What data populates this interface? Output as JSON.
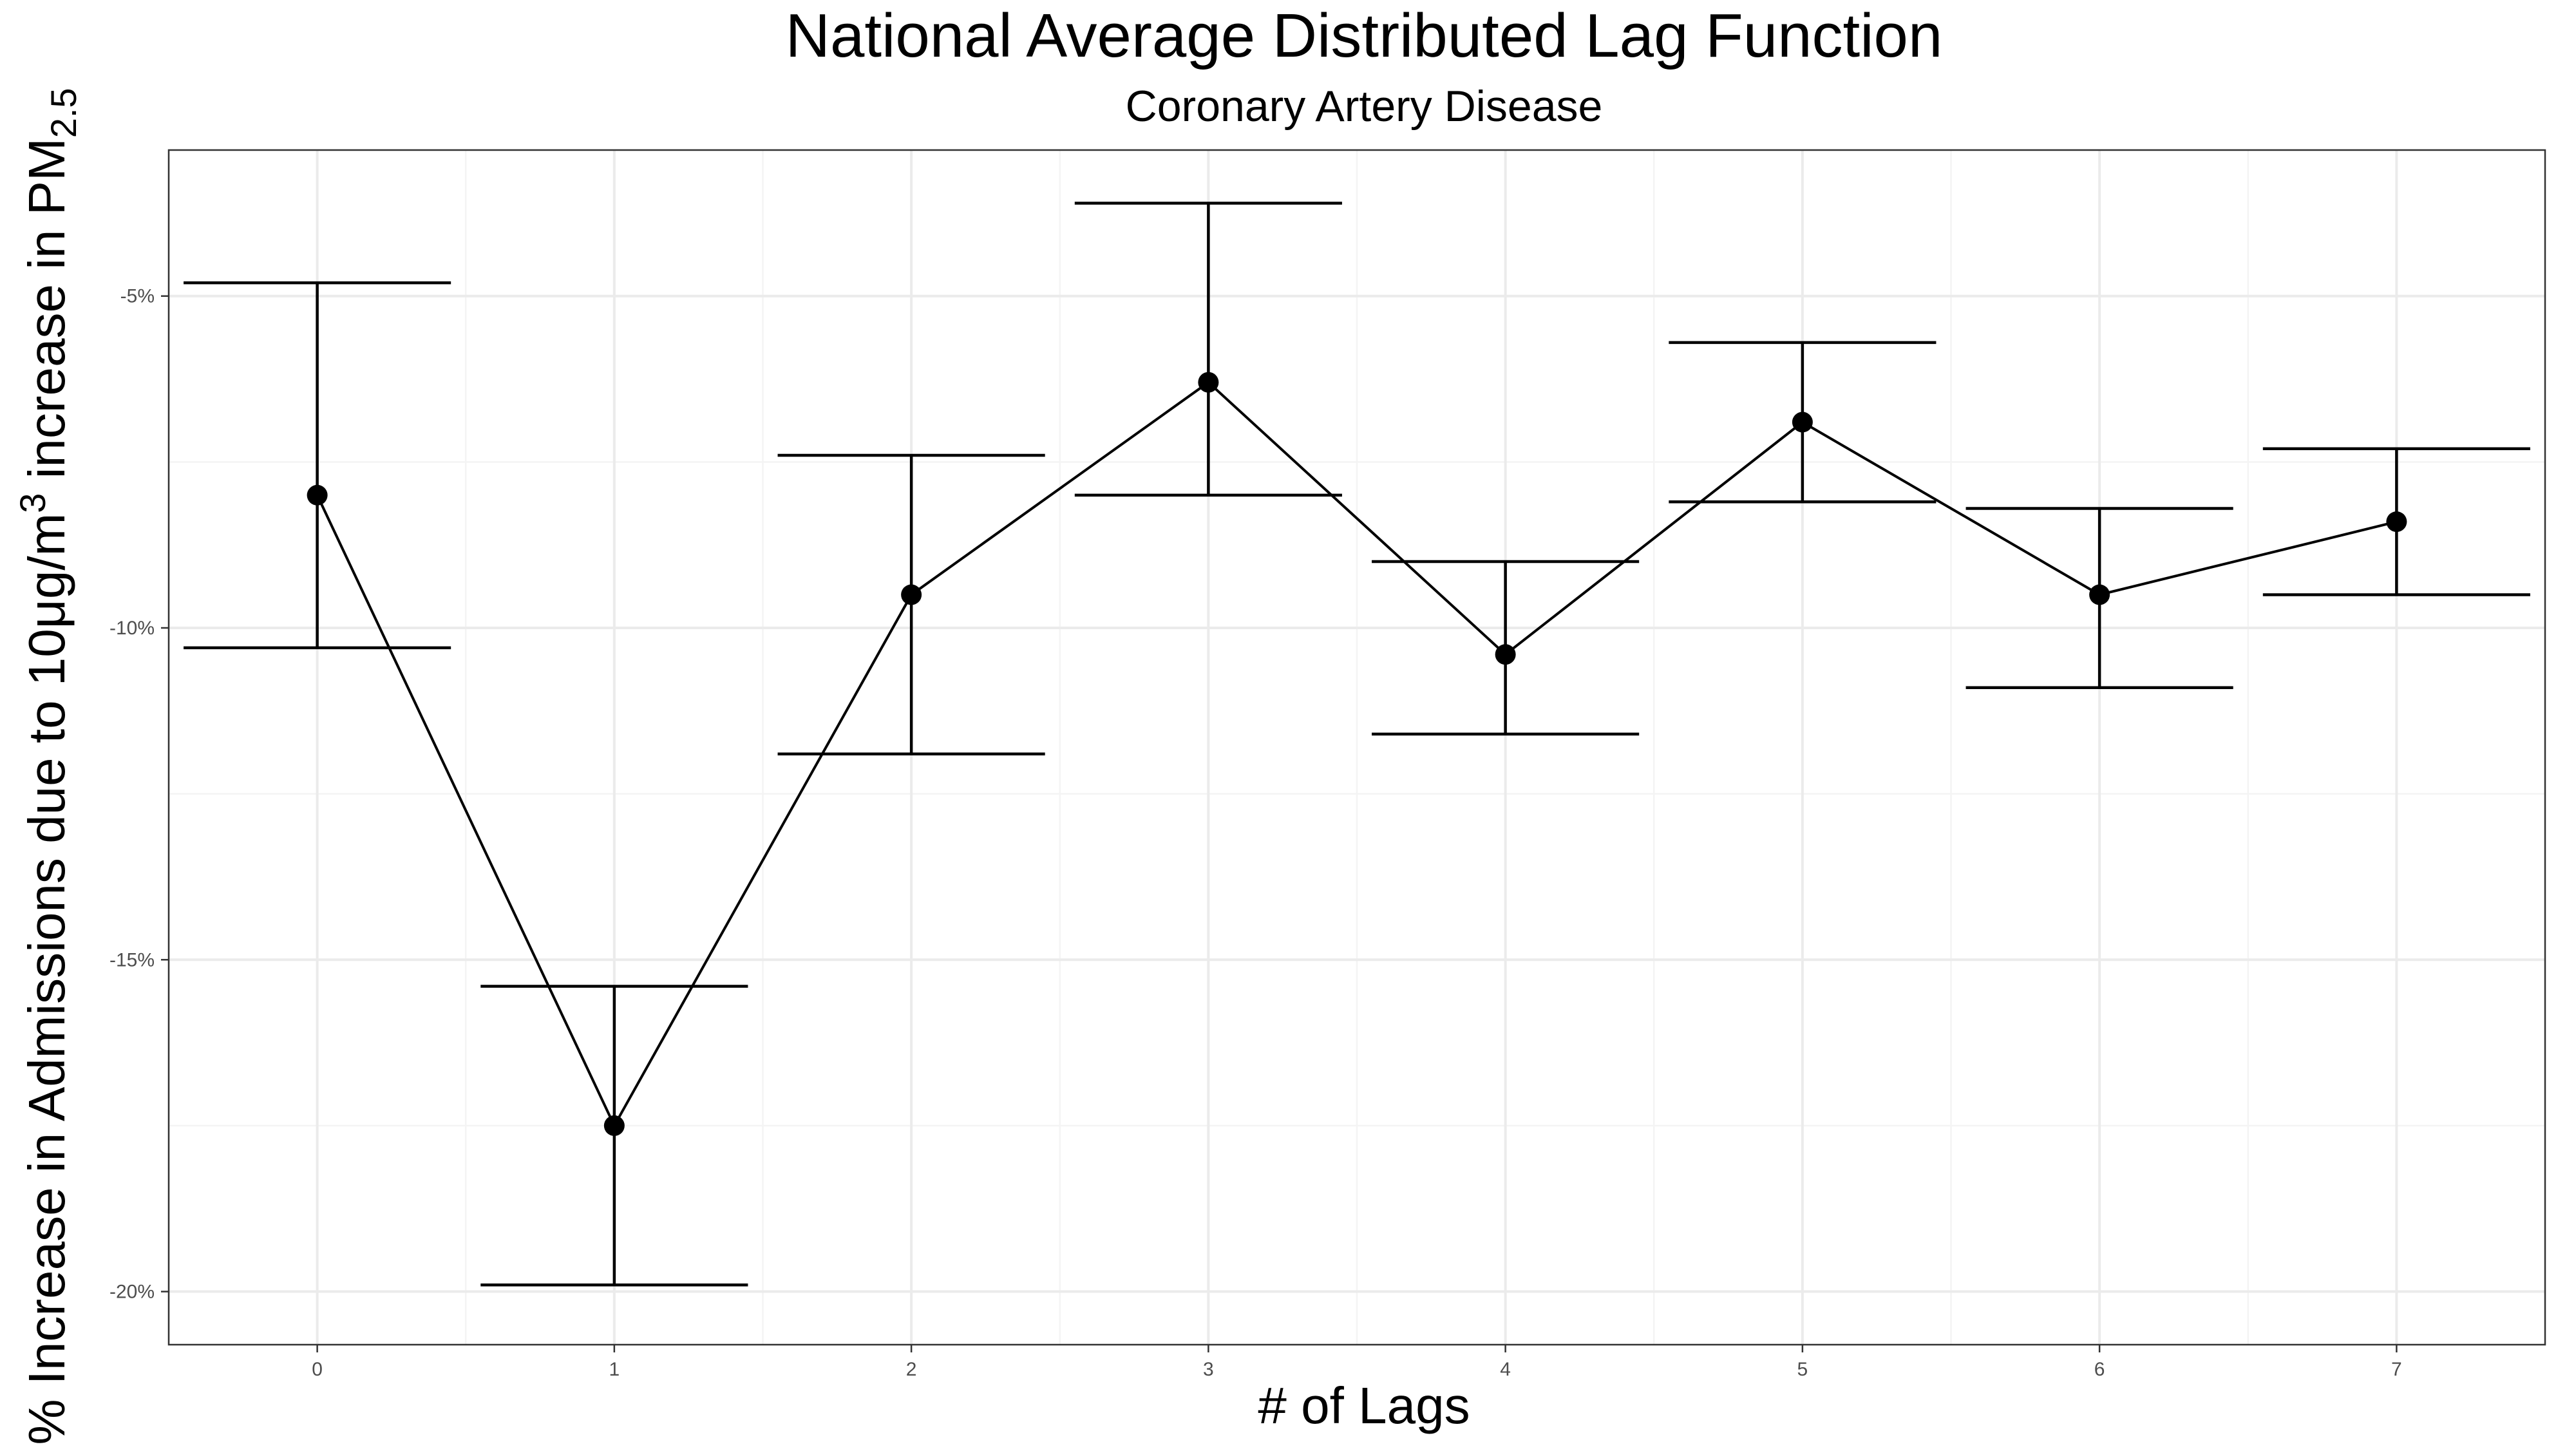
{
  "chart_data": {
    "type": "line",
    "title": "National Average Distributed Lag Function",
    "subtitle": "Coronary Artery Disease",
    "xlabel": "# of Lags",
    "ylabel": {
      "main": "% Increase in Admissions due to 10μg/m",
      "sup": "3",
      "mid": " increase in PM",
      "sub": "2.5"
    },
    "x": [
      0,
      1,
      2,
      3,
      4,
      5,
      6,
      7
    ],
    "values": [
      -8.0,
      -17.5,
      -9.5,
      -6.3,
      -10.4,
      -6.9,
      -9.5,
      -8.4
    ],
    "lower": [
      -10.3,
      -19.9,
      -11.9,
      -8.0,
      -11.6,
      -8.1,
      -10.9,
      -9.5
    ],
    "upper": [
      -4.8,
      -15.4,
      -7.4,
      -3.6,
      -9.0,
      -5.7,
      -8.2,
      -7.3
    ],
    "xlim": [
      -0.5,
      7.5
    ],
    "ylim": [
      -20.8,
      -2.8
    ],
    "y_ticks": [
      -5,
      -10,
      -15,
      -20
    ],
    "y_tick_labels": [
      "-5%",
      "-10%",
      "-15%",
      "-20%"
    ],
    "x_tick_labels": [
      "0",
      "1",
      "2",
      "3",
      "4",
      "5",
      "6",
      "7"
    ],
    "grid": true,
    "legend": "none"
  }
}
